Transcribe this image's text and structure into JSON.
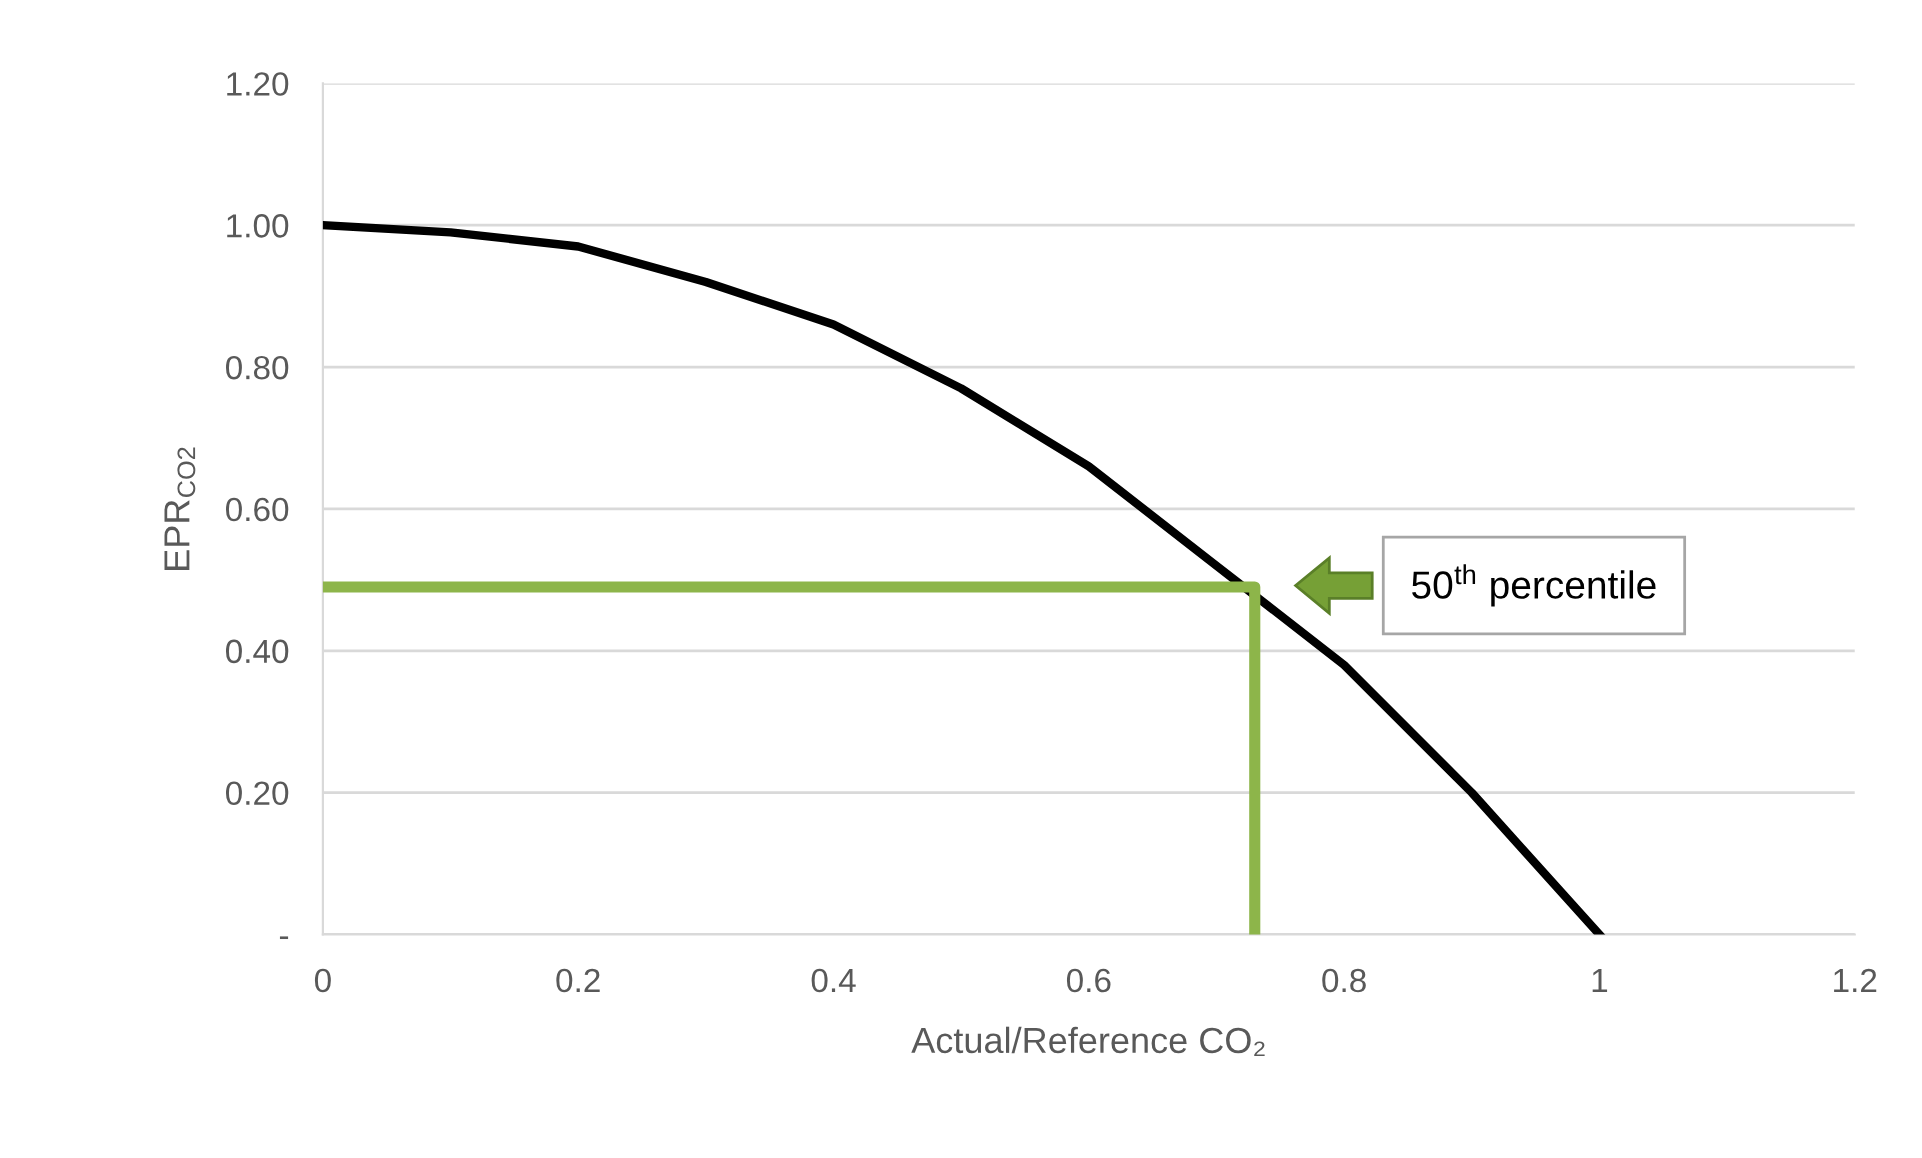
{
  "chart_data": {
    "type": "line",
    "xlabel": "Actual/Reference CO₂",
    "ylabel": "EPR$_{CO2}$",
    "series": [
      {
        "color": "#000000",
        "x": [
          0,
          0.1,
          0.2,
          0.3,
          0.4,
          0.5,
          0.6,
          0.7,
          0.8,
          0.9,
          1.0
        ],
        "values": [
          1.0,
          0.99,
          0.97,
          0.92,
          0.86,
          0.77,
          0.66,
          0.52,
          0.38,
          0.2,
          0
        ]
      },
      {
        "color": "#8db54a",
        "x": [
          0,
          0.73,
          0.73
        ],
        "values": [
          0.49,
          0.49,
          0
        ]
      }
    ],
    "annotations": [
      "50$^{th}$ percentile"
    ],
    "xlim": [
      0,
      1.2
    ],
    "xticks": [
      0,
      0.2,
      0.4,
      0.6,
      0.8,
      1,
      1.2
    ],
    "ylim": [
      0,
      1.2
    ],
    "yticks": [
      {
        "value": 0,
        "label": "-"
      },
      {
        "value": 0.2,
        "label": "0.20"
      },
      {
        "value": 0.4,
        "label": "0.40"
      },
      {
        "value": 0.6,
        "label": "0.60"
      },
      {
        "value": 0.8,
        "label": "0.80"
      },
      {
        "value": 1.0,
        "label": "1.00"
      },
      {
        "value": 1.2,
        "label": "1.20"
      }
    ],
    "grid": "y",
    "legend": false
  }
}
